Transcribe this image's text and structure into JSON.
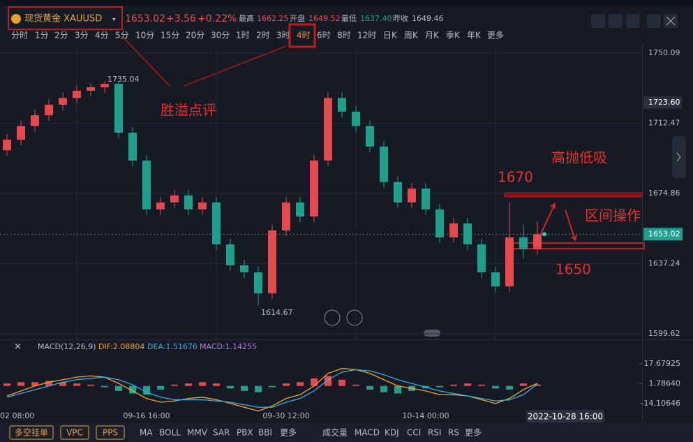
{
  "header": {
    "symbol": "现货黄金 XAUUSD",
    "price": "1653.02",
    "change": "+3.56",
    "change_pct": "+0.22%",
    "high_label": "最高",
    "high": "1662.25",
    "open_label": "开盘",
    "open": "1649.52",
    "low_label": "最低",
    "low": "1637.40",
    "prev_label": "昨收",
    "prev": "1649.46"
  },
  "timeframes": [
    "分时",
    "1分",
    "2分",
    "3分",
    "4分",
    "5分",
    "10分",
    "15分",
    "20分",
    "30分",
    "1时",
    "2时",
    "3时",
    "4时",
    "6时",
    "8时",
    "12时",
    "日K",
    "周K",
    "月K",
    "季K",
    "年K",
    "更多"
  ],
  "active_timeframe": "4时",
  "annotations": {
    "comment": "胜溢点评",
    "strategy": "高抛低吸",
    "upper": "1670",
    "range": "区间操作",
    "lower": "1650"
  },
  "chart_data": {
    "type": "candlestick",
    "up_color": "#e5484d",
    "down_color": "#1fa08c",
    "grid": true,
    "ylim": [
      1596.27,
      1754.21
    ],
    "yticks": [
      1750.09,
      1712.47,
      1674.86,
      1637.24,
      1599.62
    ],
    "crosshair_price": {
      "value": 1723.6,
      "label": "1723.60"
    },
    "last_price": 1653.02,
    "max_marker": 1735.04,
    "min_marker": 1614.67,
    "categories": [
      "02 08:00",
      null,
      null,
      null,
      null,
      null,
      null,
      null,
      null,
      null,
      "09-16 16:00",
      null,
      null,
      null,
      null,
      null,
      null,
      null,
      null,
      null,
      "09-30 12:00",
      null,
      null,
      null,
      null,
      null,
      null,
      null,
      null,
      null,
      "10-14 00:00",
      null,
      null,
      null,
      null,
      null,
      null,
      null,
      null
    ],
    "crosshair_time": "2022-10-28 16:00",
    "candles": [
      {
        "open": 1698,
        "high": 1706.7,
        "low": 1695,
        "close": 1703.7
      },
      {
        "open": 1703.7,
        "high": 1714,
        "low": 1700.7,
        "close": 1711
      },
      {
        "open": 1711,
        "high": 1719.8,
        "low": 1708,
        "close": 1716.8
      },
      {
        "open": 1716.8,
        "high": 1725.4,
        "low": 1713.8,
        "close": 1722.4
      },
      {
        "open": 1722.4,
        "high": 1729,
        "low": 1719.4,
        "close": 1726
      },
      {
        "open": 1726,
        "high": 1732.9,
        "low": 1723,
        "close": 1729.9
      },
      {
        "open": 1729.9,
        "high": 1734,
        "low": 1726.9,
        "close": 1731.8
      },
      {
        "open": 1731.8,
        "high": 1735.04,
        "low": 1728.8,
        "close": 1733.6
      },
      {
        "open": 1733.6,
        "high": 1734.5,
        "low": 1704.4,
        "close": 1707.4
      },
      {
        "open": 1707.4,
        "high": 1710.4,
        "low": 1689.5,
        "close": 1692.5
      },
      {
        "open": 1692.5,
        "high": 1695.5,
        "low": 1663.3,
        "close": 1666.3
      },
      {
        "open": 1666.3,
        "high": 1673,
        "low": 1663.3,
        "close": 1670
      },
      {
        "open": 1670,
        "high": 1676.8,
        "low": 1667,
        "close": 1673.8
      },
      {
        "open": 1673.8,
        "high": 1676.8,
        "low": 1663.3,
        "close": 1666.3
      },
      {
        "open": 1666.3,
        "high": 1673,
        "low": 1663.3,
        "close": 1670
      },
      {
        "open": 1670,
        "high": 1673,
        "low": 1644.6,
        "close": 1647.6
      },
      {
        "open": 1647.6,
        "high": 1650.6,
        "low": 1633.3,
        "close": 1636.3
      },
      {
        "open": 1636.3,
        "high": 1639.3,
        "low": 1629.6,
        "close": 1632.6
      },
      {
        "open": 1632.6,
        "high": 1635.6,
        "low": 1614.67,
        "close": 1621.3
      },
      {
        "open": 1621.3,
        "high": 1658,
        "low": 1618.3,
        "close": 1655
      },
      {
        "open": 1655,
        "high": 1673,
        "low": 1652,
        "close": 1670
      },
      {
        "open": 1670,
        "high": 1673,
        "low": 1659.5,
        "close": 1662.5
      },
      {
        "open": 1662.5,
        "high": 1695.5,
        "low": 1659.5,
        "close": 1692.5
      },
      {
        "open": 1692.5,
        "high": 1729,
        "low": 1689.5,
        "close": 1726
      },
      {
        "open": 1726,
        "high": 1729,
        "low": 1715.7,
        "close": 1718.7
      },
      {
        "open": 1718.7,
        "high": 1721.7,
        "low": 1708,
        "close": 1711
      },
      {
        "open": 1711,
        "high": 1714,
        "low": 1697,
        "close": 1700
      },
      {
        "open": 1700,
        "high": 1703,
        "low": 1678,
        "close": 1681
      },
      {
        "open": 1681,
        "high": 1684,
        "low": 1667,
        "close": 1670
      },
      {
        "open": 1670,
        "high": 1680.5,
        "low": 1667,
        "close": 1677.5
      },
      {
        "open": 1677.5,
        "high": 1680.5,
        "low": 1663.3,
        "close": 1666.3
      },
      {
        "open": 1666.3,
        "high": 1669.3,
        "low": 1648.3,
        "close": 1651.3
      },
      {
        "open": 1651.3,
        "high": 1661.8,
        "low": 1648.3,
        "close": 1658.8
      },
      {
        "open": 1658.8,
        "high": 1661.8,
        "low": 1644.6,
        "close": 1647.6
      },
      {
        "open": 1647.6,
        "high": 1650.6,
        "low": 1629.6,
        "close": 1632.6
      },
      {
        "open": 1632.6,
        "high": 1635.6,
        "low": 1622,
        "close": 1625
      },
      {
        "open": 1625,
        "high": 1670,
        "low": 1622,
        "close": 1651.3
      },
      {
        "open": 1651.3,
        "high": 1658,
        "low": 1640,
        "close": 1645
      },
      {
        "open": 1645,
        "high": 1660,
        "low": 1642,
        "close": 1653.02
      }
    ],
    "macd": {
      "title": "MACD(12,26,9)",
      "dif_label": "DIF:2.08804",
      "dea_label": "DEA:1.51676",
      "macd_label": "MACD:1.14255",
      "ylim": [
        -25.26,
        26.6
      ],
      "yticks": [
        17.67925,
        {
          "value": 1.7864,
          "label": "1.78640"
        },
        -14.10646
      ],
      "dif_color": "#f5a623",
      "dea_color": "#2bb3e6",
      "hist": [
        2,
        3,
        3,
        4,
        3,
        2,
        1,
        -1,
        -4,
        -6,
        -7,
        -3,
        1,
        2,
        3,
        2,
        -2,
        -4,
        -5,
        -1,
        2,
        3,
        6,
        8,
        5,
        1,
        -3,
        -5,
        -6,
        -4,
        -2,
        -1,
        1,
        2,
        1,
        -2,
        -3,
        2,
        1.14255
      ],
      "dif": [
        -8,
        -4,
        0,
        3,
        5,
        7,
        8,
        7,
        2,
        -4,
        -10,
        -13,
        -12,
        -10,
        -9,
        -11,
        -14,
        -17,
        -20,
        -16,
        -10,
        -7,
        0,
        10,
        14,
        13,
        10,
        5,
        0,
        -2,
        -4,
        -7,
        -7,
        -8,
        -11,
        -14,
        -10,
        -3,
        2.08804
      ],
      "dea": [
        -9,
        -6,
        -3,
        0,
        3,
        5,
        6,
        7,
        5,
        1,
        -5,
        -9,
        -11,
        -11,
        -11,
        -12,
        -13,
        -15,
        -17,
        -17,
        -13,
        -10,
        -4,
        5,
        11,
        13,
        12,
        9,
        5,
        2,
        -1,
        -4,
        -6,
        -8,
        -10,
        -12,
        -11,
        -7,
        1.51676
      ]
    }
  },
  "bottom_toolbar": {
    "buttons": [
      "多空挂单",
      "VPC",
      "PPS"
    ],
    "main_indicators": [
      "MA",
      "BOLL",
      "MMV",
      "SAR",
      "PBX",
      "BBI",
      "更多"
    ],
    "sub_indicators": [
      "成交量",
      "MACD",
      "KDJ",
      "CCI",
      "RSI",
      "RS",
      "更多"
    ]
  }
}
